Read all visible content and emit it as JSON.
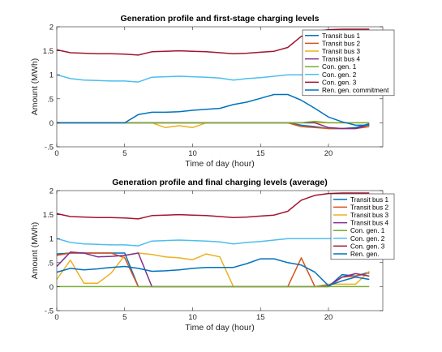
{
  "chart_data": [
    {
      "type": "line",
      "title": "Generation profile and first-stage charging levels",
      "xlabel": "Time of day (hour)",
      "ylabel": "Amount (MWh)",
      "xlim": [
        0,
        24
      ],
      "ylim": [
        -0.5,
        2
      ],
      "xticks": [
        0,
        5,
        10,
        15,
        20
      ],
      "yticks": [
        -0.5,
        0,
        0.5,
        1,
        1.5,
        2
      ],
      "grid": false,
      "legend_position": "top-right",
      "x": [
        0,
        1,
        2,
        3,
        4,
        5,
        6,
        7,
        8,
        9,
        10,
        11,
        12,
        13,
        14,
        15,
        16,
        17,
        18,
        19,
        20,
        21,
        22,
        23
      ],
      "series": [
        {
          "name": "Transit bus 1",
          "color": "#0072BD",
          "values": [
            0,
            0,
            0,
            0,
            0,
            0,
            0,
            0,
            0,
            0,
            0,
            0,
            0,
            0,
            0,
            0,
            0,
            0,
            -0.05,
            -0.08,
            -0.12,
            -0.12,
            -0.1,
            -0.02
          ]
        },
        {
          "name": "Transit bus 2",
          "color": "#D95319",
          "values": [
            0,
            0,
            0,
            0,
            0,
            0,
            0,
            0,
            0,
            0,
            0,
            0,
            0,
            0,
            0,
            0,
            0,
            0,
            -0.08,
            -0.1,
            -0.12,
            -0.12,
            -0.12,
            -0.08
          ]
        },
        {
          "name": "Transit bus 3",
          "color": "#EDB120",
          "values": [
            0,
            0,
            0,
            0,
            0,
            0,
            0,
            0,
            -0.1,
            -0.06,
            -0.1,
            0,
            0,
            0,
            0,
            0,
            0,
            0,
            0,
            0,
            0,
            0,
            0,
            0
          ]
        },
        {
          "name": "Transit bus 4",
          "color": "#7E2F8E",
          "values": [
            0,
            0,
            0,
            0,
            0,
            0,
            0,
            0,
            0,
            0,
            0,
            0,
            0,
            0,
            0,
            0,
            0,
            0,
            0,
            0,
            -0.1,
            -0.12,
            -0.12,
            -0.04
          ]
        },
        {
          "name": "Con. gen. 1",
          "color": "#77AC30",
          "values": [
            0,
            0,
            0,
            0,
            0,
            0,
            0,
            0,
            0,
            0,
            0,
            0,
            0,
            0,
            0,
            0,
            0,
            0,
            0,
            0.03,
            0,
            0,
            0,
            0
          ]
        },
        {
          "name": "Con. gen. 2",
          "color": "#4DBEEE",
          "values": [
            1.0,
            0.92,
            0.89,
            0.88,
            0.87,
            0.87,
            0.85,
            0.95,
            0.96,
            0.97,
            0.96,
            0.95,
            0.93,
            0.89,
            0.92,
            0.94,
            0.97,
            1.0,
            1.0,
            1.0,
            1.0,
            1.0,
            1.0,
            1.0
          ]
        },
        {
          "name": "Con. gen. 3",
          "color": "#A2142F",
          "values": [
            1.52,
            1.46,
            1.45,
            1.44,
            1.44,
            1.43,
            1.41,
            1.48,
            1.49,
            1.5,
            1.49,
            1.48,
            1.46,
            1.44,
            1.45,
            1.47,
            1.49,
            1.57,
            1.8,
            1.9,
            1.94,
            1.95,
            1.95,
            1.95
          ]
        },
        {
          "name": "Ren. gen. commitment",
          "color": "#0072BD",
          "values": [
            0,
            0,
            0,
            0,
            0,
            0,
            0.17,
            0.22,
            0.22,
            0.23,
            0.26,
            0.28,
            0.3,
            0.38,
            0.43,
            0.51,
            0.59,
            0.59,
            0.47,
            0.3,
            0.12,
            0.02,
            -0.05,
            -0.05
          ]
        }
      ]
    },
    {
      "type": "line",
      "title": "Generation profile and final charging levels (average)",
      "xlabel": "Time of day (hour)",
      "ylabel": "Amount (MWh)",
      "xlim": [
        0,
        24
      ],
      "ylim": [
        -0.5,
        2
      ],
      "xticks": [
        0,
        5,
        10,
        15,
        20
      ],
      "yticks": [
        -0.5,
        0,
        0.5,
        1,
        1.5,
        2
      ],
      "grid": false,
      "legend_position": "top-right",
      "x": [
        0,
        1,
        2,
        3,
        4,
        5,
        6,
        7,
        8,
        9,
        10,
        11,
        12,
        13,
        14,
        15,
        16,
        17,
        18,
        19,
        20,
        21,
        22,
        23
      ],
      "series": [
        {
          "name": "Transit bus 1",
          "color": "#0072BD",
          "values": [
            0.68,
            0.7,
            0.7,
            0.7,
            0.7,
            0.7,
            0,
            0,
            0,
            0,
            0,
            0,
            0,
            0,
            0,
            0,
            0,
            0,
            0,
            0,
            0,
            0.25,
            0.22,
            0.3
          ]
        },
        {
          "name": "Transit bus 2",
          "color": "#D95319",
          "values": [
            0.65,
            0.7,
            0.7,
            0.7,
            0.7,
            0.6,
            0,
            0,
            0,
            0,
            0,
            0,
            0,
            0,
            0,
            0,
            0,
            0,
            0.6,
            0,
            0,
            0.2,
            0.22,
            0.28
          ]
        },
        {
          "name": "Transit bus 3",
          "color": "#EDB120",
          "values": [
            0.15,
            0.55,
            0.07,
            0.07,
            0.28,
            0.65,
            0.7,
            0.67,
            0.62,
            0.6,
            0.56,
            0.68,
            0.62,
            0,
            0,
            0,
            0,
            0,
            0,
            0,
            0.05,
            0.05,
            0.05,
            0.32
          ]
        },
        {
          "name": "Transit bus 4",
          "color": "#7E2F8E",
          "values": [
            0.42,
            0.72,
            0.7,
            0.62,
            0.63,
            0.65,
            0.7,
            0,
            0,
            0,
            0,
            0,
            0,
            0,
            0,
            0,
            0,
            0,
            0,
            0,
            0.02,
            0.2,
            0.27,
            0.22
          ]
        },
        {
          "name": "Con. gen. 1",
          "color": "#77AC30",
          "values": [
            0,
            0,
            0,
            0,
            0,
            0,
            0,
            0,
            0,
            0,
            0,
            0,
            0,
            0,
            0,
            0,
            0,
            0,
            0,
            0,
            0,
            0,
            0,
            0
          ]
        },
        {
          "name": "Con. gen. 2",
          "color": "#4DBEEE",
          "values": [
            1.0,
            0.92,
            0.89,
            0.88,
            0.87,
            0.87,
            0.85,
            0.95,
            0.96,
            0.97,
            0.96,
            0.95,
            0.93,
            0.89,
            0.92,
            0.94,
            0.97,
            1.0,
            1.0,
            1.0,
            1.0,
            1.0,
            1.0,
            1.0
          ]
        },
        {
          "name": "Con. gen. 3",
          "color": "#A2142F",
          "values": [
            1.52,
            1.46,
            1.45,
            1.44,
            1.44,
            1.43,
            1.41,
            1.48,
            1.49,
            1.5,
            1.49,
            1.48,
            1.46,
            1.44,
            1.45,
            1.47,
            1.49,
            1.57,
            1.8,
            1.9,
            1.94,
            1.95,
            1.95,
            1.95
          ]
        },
        {
          "name": "Ren. gen.",
          "color": "#0072BD",
          "values": [
            0.3,
            0.38,
            0.35,
            0.37,
            0.4,
            0.42,
            0.38,
            0.32,
            0.33,
            0.35,
            0.38,
            0.4,
            0.4,
            0.4,
            0.48,
            0.58,
            0.58,
            0.5,
            0.45,
            0.3,
            0.02,
            0.12,
            0.2,
            0.15
          ]
        }
      ]
    }
  ]
}
